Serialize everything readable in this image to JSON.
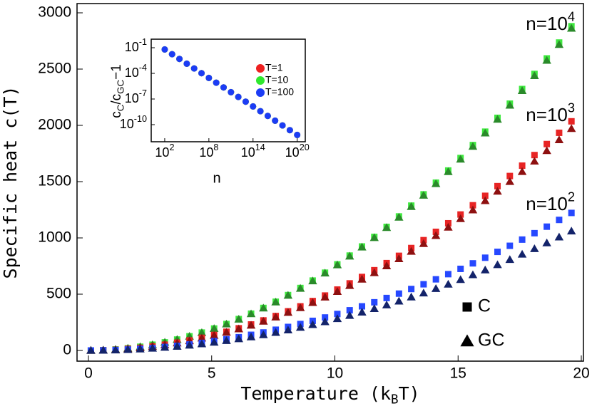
{
  "chart_data": [
    {
      "type": "scatter",
      "xlabel": [
        "Temperature (k",
        "B",
        "T)"
      ],
      "ylabel": "Specific heat c(T)",
      "xlim": [
        0,
        20
      ],
      "xticks": [
        0,
        5,
        10,
        15,
        20
      ],
      "ylim": [
        0,
        3000
      ],
      "yticks": [
        0,
        500,
        1000,
        1500,
        2000,
        2500,
        3000
      ],
      "x": [
        0.1,
        0.6,
        1.1,
        1.6,
        2.1,
        2.6,
        3.1,
        3.6,
        4.1,
        4.6,
        5.1,
        5.6,
        6.1,
        6.6,
        7.1,
        7.6,
        8.1,
        8.6,
        9.1,
        9.6,
        10.1,
        10.6,
        11.1,
        11.6,
        12.1,
        12.6,
        13.1,
        13.6,
        14.1,
        14.6,
        15.1,
        15.6,
        16.1,
        16.6,
        17.1,
        17.6,
        18.1,
        18.6,
        19.1,
        19.6
      ],
      "series": [
        {
          "marker": "square",
          "color": "#3ee83e",
          "values": [
            0,
            3,
            9,
            19,
            33,
            51,
            72,
            97,
            126,
            159,
            195,
            235,
            279,
            327,
            378,
            433,
            492,
            555,
            621,
            691,
            765,
            843,
            924,
            1009,
            1098,
            1191,
            1287,
            1387,
            1491,
            1599,
            1710,
            1825,
            1944,
            2067,
            2193,
            2323,
            2457,
            2595,
            2736,
            2881
          ]
        },
        {
          "marker": "triangle",
          "color": "#2a8a2a",
          "values": [
            0,
            3,
            9,
            19,
            33,
            50,
            72,
            97,
            125,
            158,
            194,
            234,
            277,
            325,
            376,
            430,
            489,
            551,
            617,
            687,
            760,
            837,
            918,
            1002,
            1091,
            1183,
            1278,
            1378,
            1481,
            1588,
            1699,
            1813,
            1931,
            2053,
            2178,
            2308,
            2441,
            2577,
            2718,
            2862
          ]
        },
        {
          "marker": "square",
          "color": "#e82424",
          "values": [
            0,
            2,
            6,
            14,
            23,
            36,
            51,
            69,
            89,
            112,
            138,
            166,
            197,
            231,
            267,
            306,
            348,
            392,
            439,
            488,
            541,
            596,
            653,
            713,
            776,
            841,
            910,
            980,
            1054,
            1130,
            1208,
            1290,
            1374,
            1460,
            1550,
            1642,
            1736,
            1834,
            1934,
            2036
          ]
        },
        {
          "marker": "triangle",
          "color": "#8e1010",
          "values": [
            0,
            2,
            6,
            13,
            23,
            35,
            49,
            66,
            86,
            109,
            133,
            161,
            191,
            223,
            259,
            296,
            337,
            379,
            425,
            473,
            523,
            576,
            632,
            690,
            751,
            814,
            880,
            949,
            1020,
            1094,
            1170,
            1248,
            1330,
            1414,
            1500,
            1589,
            1681,
            1775,
            1871,
            1971
          ]
        },
        {
          "marker": "square",
          "color": "#2648ff",
          "values": [
            0,
            1,
            4,
            8,
            14,
            21,
            31,
            41,
            53,
            67,
            83,
            100,
            118,
            139,
            160,
            184,
            209,
            235,
            263,
            293,
            324,
            357,
            392,
            428,
            466,
            505,
            546,
            588,
            632,
            678,
            725,
            774,
            824,
            876,
            930,
            985,
            1042,
            1100,
            1160,
            1222
          ]
        },
        {
          "marker": "triangle",
          "color": "#13236a",
          "values": [
            0,
            1,
            3,
            7,
            12,
            19,
            27,
            36,
            46,
            58,
            72,
            87,
            103,
            120,
            139,
            159,
            181,
            204,
            229,
            254,
            282,
            310,
            340,
            371,
            404,
            438,
            474,
            510,
            549,
            588,
            629,
            672,
            715,
            761,
            807,
            855,
            904,
            955,
            1007,
            1060
          ]
        }
      ],
      "annotations": [
        [
          "n=10",
          "4"
        ],
        [
          "n=10",
          "3"
        ],
        [
          "n=10",
          "2"
        ]
      ],
      "legend": [
        {
          "label": "C",
          "marker": "square"
        },
        {
          "label": "GC",
          "marker": "triangle"
        }
      ],
      "legend_position": "lower right"
    },
    {
      "type": "scatter",
      "xlabel": "n",
      "ylabel": [
        "c",
        "C",
        "/c",
        "GC",
        "−1"
      ],
      "xscale": "log",
      "yscale": "log",
      "xlim": [
        1,
        1e+21
      ],
      "xticks": [
        {
          "value": 100,
          "label": [
            "10",
            "2"
          ]
        },
        {
          "value": 100000000.0,
          "label": [
            "10",
            "8"
          ]
        },
        {
          "value": 100000000000000.0,
          "label": [
            "10",
            "14"
          ]
        },
        {
          "value": 1e+20,
          "label": [
            "10",
            "20"
          ]
        }
      ],
      "ylim": [
        1e-12,
        1
      ],
      "yticks": [
        {
          "value": 0.1,
          "label": [
            "10",
            "-1"
          ]
        },
        {
          "value": 0.0001,
          "label": [
            "10",
            "-4"
          ]
        },
        {
          "value": 1e-07,
          "label": [
            "10",
            "-7"
          ]
        },
        {
          "value": 1e-10,
          "label": [
            "10",
            "-10"
          ]
        }
      ],
      "x": [
        100,
        1000,
        10000.0,
        100000.0,
        1000000.0,
        10000000.0,
        100000000.0,
        1000000000.0,
        10000000000.0,
        100000000000.0,
        1000000000000.0,
        10000000000000.0,
        100000000000000.0,
        1000000000000000.0,
        1e+16,
        1e+17,
        1e+18,
        1e+19,
        1e+20
      ],
      "series": [
        {
          "name": "T=1",
          "color": "#ee2020",
          "values": [
            0.0631,
            0.01754,
            0.00489,
            0.00136,
            0.000378,
            0.000105,
            2.93e-05,
            8.15e-06,
            2.27e-06,
            6.31e-07,
            1.75e-07,
            4.89e-08,
            1.36e-08,
            3.78e-09,
            1.05e-09,
            2.93e-10,
            8.15e-11,
            2.27e-11,
            6.31e-12
          ]
        },
        {
          "name": "T=10",
          "color": "#2ee82e",
          "values": [
            0.0631,
            0.01754,
            0.00489,
            0.00136,
            0.000378,
            0.000105,
            2.93e-05,
            8.15e-06,
            2.27e-06,
            6.31e-07,
            1.75e-07,
            4.89e-08,
            1.36e-08,
            3.78e-09,
            1.05e-09,
            2.93e-10,
            8.15e-11,
            2.27e-11,
            6.31e-12
          ]
        },
        {
          "name": "T=100",
          "color": "#1c3cf5",
          "values": [
            0.0631,
            0.01754,
            0.00489,
            0.00136,
            0.000378,
            0.000105,
            2.93e-05,
            8.15e-06,
            2.27e-06,
            6.31e-07,
            1.75e-07,
            4.89e-08,
            1.36e-08,
            3.78e-09,
            1.05e-09,
            2.93e-10,
            8.15e-11,
            2.27e-11,
            6.31e-12
          ]
        }
      ],
      "legend_position": "upper right"
    }
  ]
}
